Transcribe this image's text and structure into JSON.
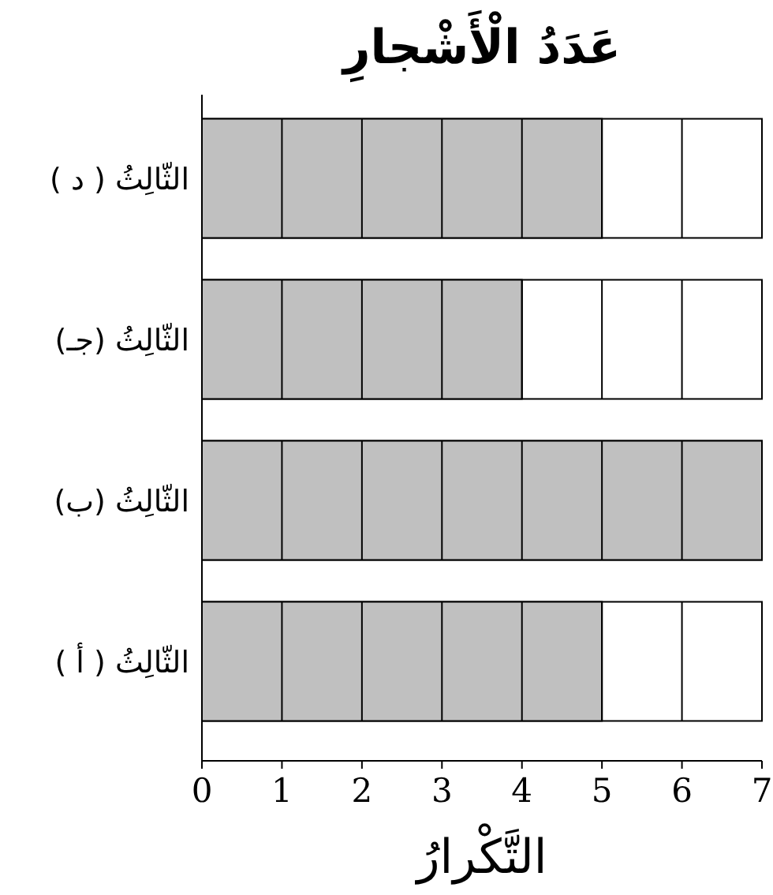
{
  "chart_data": {
    "type": "bar",
    "orientation": "horizontal",
    "title": "عَدَدُ الْأَشْجارِ",
    "xlabel": "التَّكْرارُ",
    "categories": [
      "الثّالِثُ ( د )",
      "الثّالِثُ (جـ)",
      "الثّالِثُ (ب)",
      "الثّالِثُ ( أ )"
    ],
    "values": [
      5,
      4,
      7,
      5
    ],
    "color": "#c0c0c0",
    "xlim": [
      0,
      7
    ],
    "xticks": [
      0,
      1,
      2,
      3,
      4,
      5,
      6,
      7
    ],
    "grid": "x"
  }
}
